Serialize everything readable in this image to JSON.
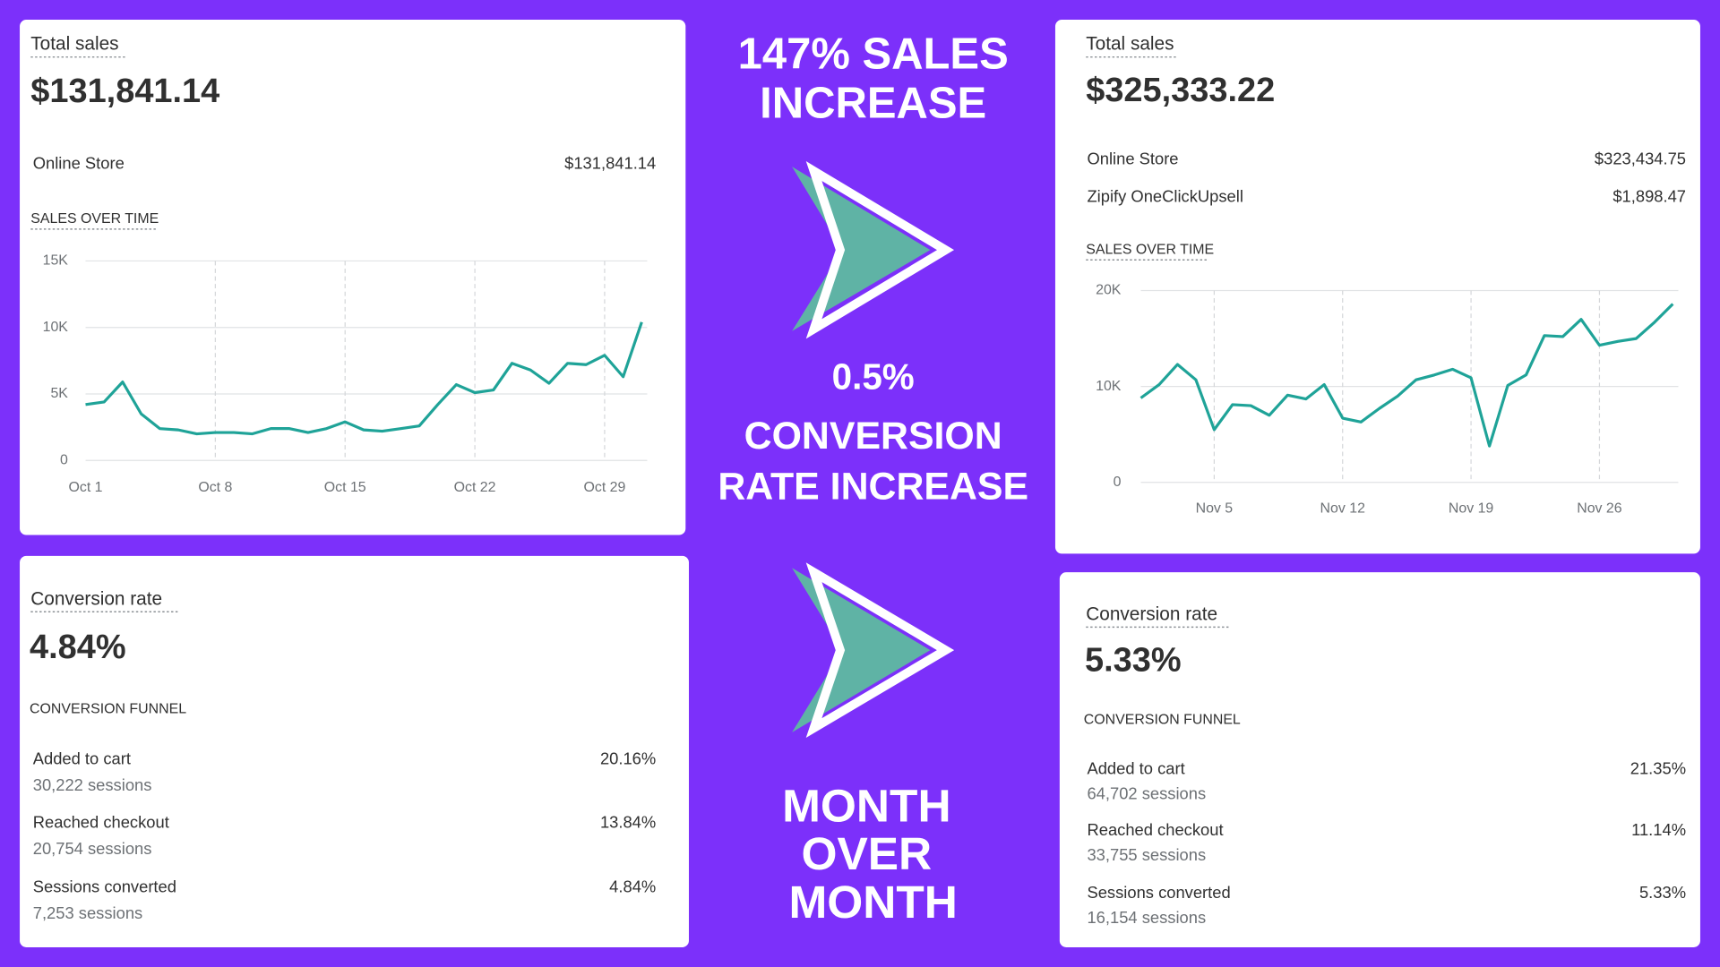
{
  "left": {
    "total_sales": {
      "title": "Total sales",
      "amount": "$131,841.14",
      "rows": [
        {
          "label": "Online Store",
          "value": "$131,841.14"
        }
      ]
    },
    "sales_chart": {
      "type": "line",
      "title": "SALES OVER TIME",
      "categories": [
        "Oct 1",
        null,
        null,
        null,
        null,
        null,
        null,
        "Oct 8",
        null,
        null,
        null,
        null,
        null,
        null,
        "Oct 15",
        null,
        null,
        null,
        null,
        null,
        null,
        "Oct 22",
        null,
        null,
        null,
        null,
        null,
        null,
        "Oct 29",
        null,
        null
      ],
      "values": [
        4200,
        4400,
        5900,
        3500,
        2400,
        2300,
        2000,
        2100,
        2100,
        2000,
        2400,
        2400,
        2100,
        2400,
        2900,
        2300,
        2200,
        2400,
        2600,
        4200,
        5700,
        5100,
        5300,
        7300,
        6800,
        5800,
        7300,
        7200,
        7900,
        6300,
        10400
      ],
      "color": "#1fa398",
      "ylim": [
        0,
        15000
      ],
      "yticks": [
        0,
        {
          "value": 5000,
          "label": "5K"
        },
        {
          "value": 10000,
          "label": "10K"
        },
        {
          "value": 15000,
          "label": "15K"
        }
      ],
      "grid": true
    },
    "conversion": {
      "title": "Conversion rate",
      "rate": "4.84%",
      "funnel_title": "CONVERSION FUNNEL",
      "rows": [
        {
          "label": "Added to cart",
          "sessions": "30,222 sessions",
          "value": "20.16%"
        },
        {
          "label": "Reached checkout",
          "sessions": "20,754 sessions",
          "value": "13.84%"
        },
        {
          "label": "Sessions converted",
          "sessions": "7,253 sessions",
          "value": "4.84%"
        }
      ]
    }
  },
  "center": {
    "headline": [
      "147% SALES",
      "INCREASE"
    ],
    "conversion_change": "0.5%",
    "conversion_text": [
      "CONVERSION",
      "RATE INCREASE"
    ],
    "period": [
      "MONTH",
      "OVER",
      "MONTH"
    ]
  },
  "right": {
    "total_sales": {
      "title": "Total sales",
      "amount": "$325,333.22",
      "rows": [
        {
          "label": "Online Store",
          "value": "$323,434.75"
        },
        {
          "label": "Zipify OneClickUpsell",
          "value": "$1,898.47"
        }
      ]
    },
    "sales_chart": {
      "type": "line",
      "title": "SALES OVER TIME",
      "categories": [
        null,
        null,
        null,
        null,
        "Nov 5",
        null,
        null,
        null,
        null,
        null,
        null,
        "Nov 12",
        null,
        null,
        null,
        null,
        null,
        null,
        "Nov 19",
        null,
        null,
        null,
        null,
        null,
        null,
        "Nov 26",
        null,
        null,
        null,
        null
      ],
      "values": [
        8800,
        10200,
        12300,
        10700,
        5500,
        8100,
        8000,
        7000,
        9100,
        8700,
        10200,
        6700,
        6300,
        7700,
        9000,
        10700,
        11200,
        11800,
        10900,
        3800,
        10100,
        11200,
        15300,
        15200,
        17000,
        14300,
        14700,
        15000,
        16700,
        18600
      ],
      "color": "#1fa398",
      "ylim": [
        0,
        20000
      ],
      "yticks": [
        0,
        {
          "value": 10000,
          "label": "10K"
        },
        {
          "value": 20000,
          "label": "20K"
        }
      ],
      "grid": true
    },
    "conversion": {
      "title": "Conversion rate",
      "rate": "5.33%",
      "funnel_title": "CONVERSION FUNNEL",
      "rows": [
        {
          "label": "Added to cart",
          "sessions": "64,702 sessions",
          "value": "21.35%"
        },
        {
          "label": "Reached checkout",
          "sessions": "33,755 sessions",
          "value": "11.14%"
        },
        {
          "label": "Sessions converted",
          "sessions": "16,154 sessions",
          "value": "5.33%"
        }
      ]
    }
  }
}
